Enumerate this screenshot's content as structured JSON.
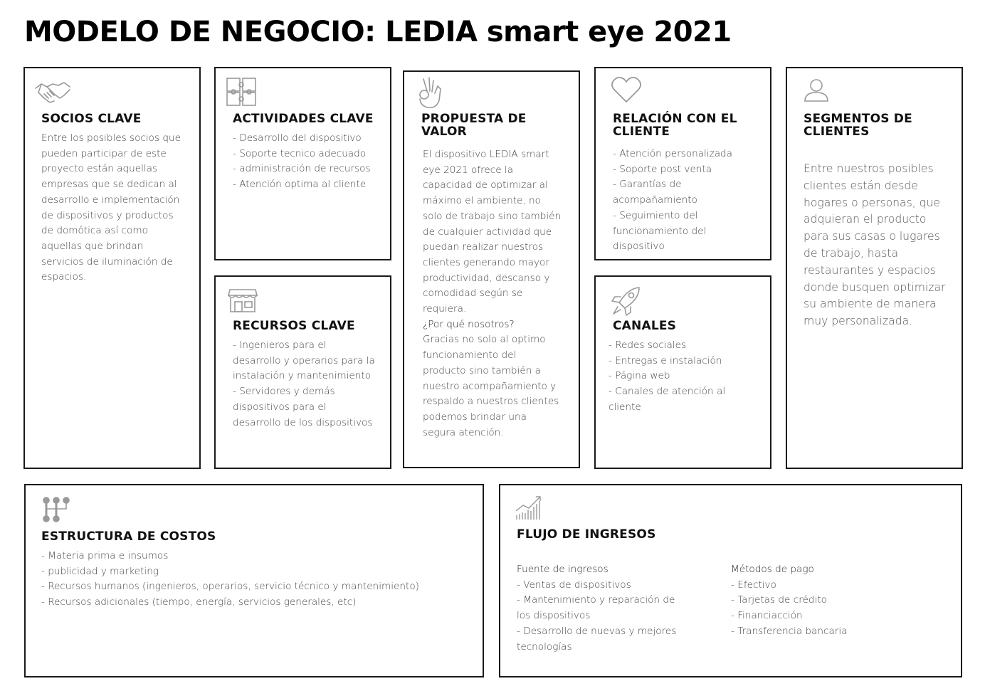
{
  "title": "MODELO DE NEGOCIO: LEDIA smart eye 2021",
  "socios": {
    "icon": "handshake-icon",
    "heading": "SOCIOS CLAVE",
    "text": "Entre los posibles socios que pueden participar de este proyecto están aquellas empresas que se dedican al desarrollo e implementación de dispositivos y productos de domótica así como aquellas que brindan servicios de iluminación de espacios."
  },
  "actividades": {
    "icon": "puzzle-icon",
    "heading": "ACTIVIDADES CLAVE",
    "items": [
      "- Desarrollo del dispositivo",
      "- Soporte tecnico adecuado",
      "-  administración de recursos",
      "- Atención optima al cliente"
    ]
  },
  "recursos": {
    "icon": "store-icon",
    "heading": "RECURSOS CLAVE",
    "items": [
      "- Ingenieros para el desarrollo y operarios para la instalación y mantenimiento",
      "- Servidores y demás dispositivos para el desarrollo de los dispositivos"
    ]
  },
  "propuesta": {
    "icon": "ok-hand-icon",
    "heading": "PROPUESTA DE VALOR",
    "text": "El dispositivo LEDIA smart eye 2021 ofrece la capacidad de optimizar al máximo el ambiente, no solo de trabajo sino también de cualquier actividad que puedan realizar nuestros clientes generando mayor productividad, descanso y comodidad según se requiera.",
    "question": "¿Por qué nosotros?",
    "answer": "Gracias no solo al optimo funcionamiento del producto sino también a nuestro acompañamiento y respaldo a nuestros clientes podemos brindar una segura atención."
  },
  "relacion": {
    "icon": "heart-icon",
    "heading": "RELACIÓN CON EL CLIENTE",
    "items": [
      "- Atención personalizada",
      "- Soporte post venta",
      "- Garantías de acompañamiento",
      "- Seguimiento del funcionamiento del dispositivo"
    ]
  },
  "canales": {
    "icon": "rocket-icon",
    "heading": "CANALES",
    "items": [
      "- Redes sociales",
      "- Entregas e instalación",
      "- Página web",
      "- Canales de atención al cliente"
    ]
  },
  "segmentos": {
    "icon": "user-icon",
    "heading": "SEGMENTOS DE CLIENTES",
    "text": "Entre nuestros posibles clientes están desde hogares o personas, que adquieran el producto para sus casas o lugares de trabajo, hasta restaurantes y espacios donde busquen optimizar su ambiente de manera muy personalizada."
  },
  "costos": {
    "icon": "flowchart-icon",
    "heading": "ESTRUCTURA DE COSTOS",
    "items": [
      "- Materia prima e insumos",
      "- publicidad y marketing",
      "- Recursos humanos (ingenieros, operarios, servicio técnico y mantenimiento)",
      "- Recursos adicionales (tiempo, energía, servicios generales, etc)"
    ]
  },
  "ingresos": {
    "icon": "growth-chart-icon",
    "heading": "FLUJO DE INGRESOS",
    "fuente_title": "Fuente de ingresos",
    "fuente_items": [
      "- Ventas de dispositivos",
      "- Mantenimiento y reparación de los dispositivos",
      "- Desarrollo de nuevas y mejores tecnologías"
    ],
    "metodos_title": "Métodos de pago",
    "metodos_items": [
      "- Efectivo",
      "- Tarjetas de crédito",
      "- Financiacción",
      "- Transferencia bancaria"
    ]
  }
}
